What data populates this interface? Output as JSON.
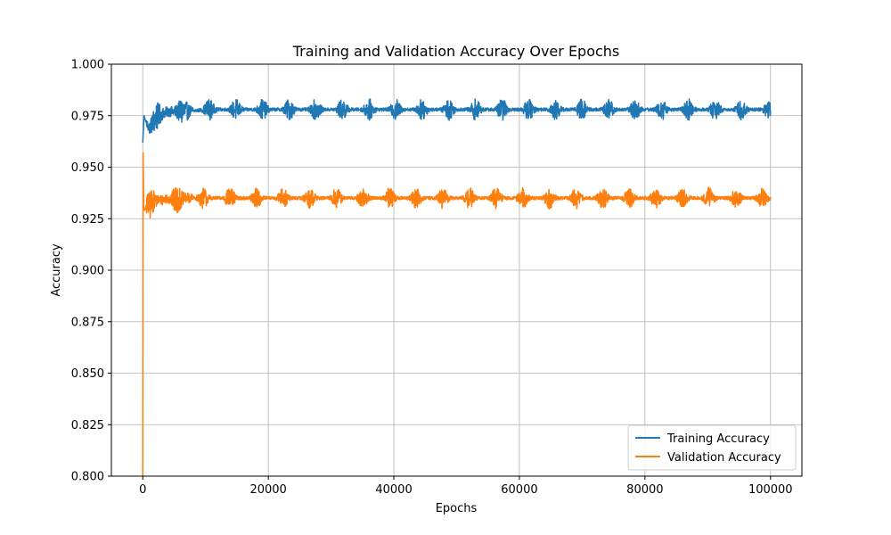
{
  "chart_data": {
    "type": "line",
    "title": "Training and Validation Accuracy Over Epochs",
    "xlabel": "Epochs",
    "ylabel": "Accuracy",
    "xlim": [
      -5000,
      105000
    ],
    "ylim": [
      0.8,
      1.0
    ],
    "xticks": [
      0,
      20000,
      40000,
      60000,
      80000,
      100000
    ],
    "yticks": [
      0.8,
      0.825,
      0.85,
      0.875,
      0.9,
      0.925,
      0.95,
      0.975,
      1.0
    ],
    "xtick_labels": [
      "0",
      "20000",
      "40000",
      "60000",
      "80000",
      "100000"
    ],
    "ytick_labels": [
      "0.800",
      "0.825",
      "0.850",
      "0.875",
      "0.900",
      "0.925",
      "0.950",
      "0.975",
      "1.000"
    ],
    "grid": true,
    "legend_position": "lower-right",
    "series": [
      {
        "name": "Training Accuracy",
        "color": "#1f77b4",
        "x": [
          0,
          200,
          500,
          1000,
          1500,
          2000,
          3000,
          4000,
          5000,
          7000,
          10000,
          15000,
          20000,
          30000,
          40000,
          50000,
          60000,
          70000,
          80000,
          90000,
          100000
        ],
        "values": [
          0.962,
          0.975,
          0.972,
          0.969,
          0.971,
          0.974,
          0.976,
          0.977,
          0.977,
          0.977,
          0.978,
          0.978,
          0.978,
          0.978,
          0.978,
          0.978,
          0.978,
          0.978,
          0.978,
          0.978,
          0.978
        ]
      },
      {
        "name": "Validation Accuracy",
        "color": "#ff7f0e",
        "x": [
          0,
          50,
          150,
          300,
          600,
          1000,
          1500,
          2000,
          3000,
          4000,
          5000,
          7000,
          10000,
          15000,
          20000,
          30000,
          40000,
          50000,
          60000,
          70000,
          80000,
          90000,
          100000
        ],
        "values": [
          0.8,
          0.957,
          0.93,
          0.929,
          0.932,
          0.931,
          0.933,
          0.934,
          0.934,
          0.935,
          0.934,
          0.935,
          0.935,
          0.935,
          0.935,
          0.935,
          0.935,
          0.935,
          0.935,
          0.935,
          0.935,
          0.935,
          0.935
        ]
      }
    ]
  }
}
